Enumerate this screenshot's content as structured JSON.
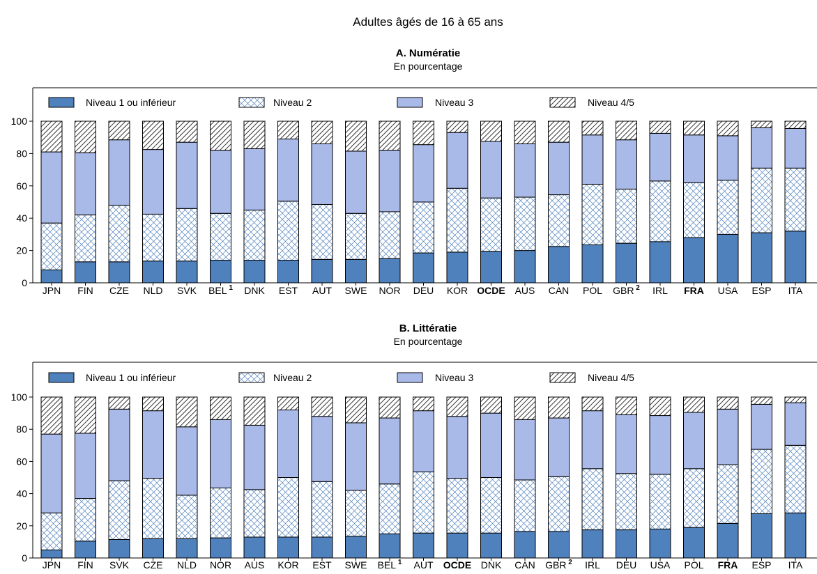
{
  "supertitle": "Adultes âgés de 16 à 65 ans",
  "legend": {
    "labels": [
      "Niveau 1 ou inférieur",
      "Niveau 2",
      "Niveau 3",
      "Niveau 4/5"
    ]
  },
  "colors": {
    "level1": "#4f81bd",
    "level2_fill": "#ffffff",
    "level2_hatch": "#4f81bd",
    "level3": "#a9b9e8",
    "level45_fill": "#ffffff",
    "level45_hatch": "#000000"
  },
  "chart_data": [
    {
      "type": "bar",
      "stacked": true,
      "title": "A. Numératie",
      "subtitle": "En pourcentage",
      "ylim": [
        0,
        100
      ],
      "yticks": [
        0,
        20,
        40,
        60,
        80,
        100
      ],
      "categories": [
        "JPN",
        "FIN",
        "CZE",
        "NLD",
        "SVK",
        "BEL",
        "DNK",
        "EST",
        "AUT",
        "SWE",
        "NOR",
        "DEU",
        "KOR",
        "OCDE",
        "AUS",
        "CAN",
        "POL",
        "GBR",
        "IRL",
        "FRA",
        "USA",
        "ESP",
        "ITA"
      ],
      "category_notes": [
        "",
        "",
        "",
        "",
        "",
        "1",
        "",
        "",
        "",
        "",
        "",
        "",
        "",
        "",
        "",
        "",
        "",
        "2",
        "",
        "",
        "",
        "",
        ""
      ],
      "bold_categories": [
        "OCDE",
        "FRA"
      ],
      "series": [
        {
          "name": "Niveau 1 ou inférieur",
          "values": [
            8,
            13,
            13,
            13.5,
            13.5,
            14,
            14,
            14,
            14.5,
            14.5,
            15,
            18.5,
            19,
            19.5,
            20,
            22.5,
            23.5,
            24.5,
            25.5,
            28,
            30,
            31,
            32
          ]
        },
        {
          "name": "Niveau 2",
          "values": [
            29,
            29,
            35,
            29,
            32.5,
            29,
            31,
            36.5,
            34,
            28.5,
            29,
            31.5,
            39.5,
            33,
            33,
            32,
            37.5,
            33.5,
            37.5,
            34,
            33.5,
            40,
            39
          ]
        },
        {
          "name": "Niveau 3",
          "values": [
            44,
            38.5,
            40.5,
            40,
            41,
            39,
            38,
            38.5,
            37.5,
            38.5,
            38,
            35.5,
            34.5,
            35,
            33,
            32.5,
            30.5,
            30.5,
            29.5,
            29.5,
            27.5,
            25,
            24.5
          ]
        },
        {
          "name": "Niveau 4/5",
          "values": [
            19,
            19.5,
            11.5,
            17.5,
            13,
            18,
            17,
            11,
            14,
            18.5,
            18,
            14.5,
            7,
            12.5,
            14,
            13,
            8.5,
            11.5,
            7.5,
            8.5,
            9,
            4,
            4.5
          ]
        }
      ]
    },
    {
      "type": "bar",
      "stacked": true,
      "title": "B. Littératie",
      "subtitle": "En pourcentage",
      "ylim": [
        0,
        100
      ],
      "yticks": [
        0,
        20,
        40,
        60,
        80,
        100
      ],
      "categories": [
        "JPN",
        "FIN",
        "SVK",
        "CZE",
        "NLD",
        "NOR",
        "AUS",
        "KOR",
        "EST",
        "SWE",
        "BEL",
        "AUT",
        "OCDE",
        "DNK",
        "CAN",
        "GBR",
        "IRL",
        "DEU",
        "USA",
        "POL",
        "FRA",
        "ESP",
        "ITA"
      ],
      "category_notes": [
        "",
        "",
        "",
        "",
        "",
        "",
        "",
        "",
        "",
        "",
        "1",
        "",
        "",
        "",
        "",
        "2",
        "",
        "",
        "",
        "",
        "",
        "",
        ""
      ],
      "bold_categories": [
        "OCDE",
        "FRA"
      ],
      "series": [
        {
          "name": "Niveau 1 ou inférieur",
          "values": [
            5,
            10.5,
            11.5,
            12,
            12,
            12.5,
            13,
            13,
            13,
            13.5,
            15,
            15.5,
            15.5,
            15.5,
            16.5,
            16.5,
            17.5,
            17.5,
            18,
            19,
            21.5,
            27.5,
            28
          ]
        },
        {
          "name": "Niveau 2",
          "values": [
            23,
            26.5,
            36.5,
            37.5,
            27,
            31,
            29.5,
            37,
            34.5,
            28.5,
            31,
            38,
            34,
            34.5,
            32,
            34,
            38,
            35,
            34,
            36.5,
            36.5,
            40,
            42
          ]
        },
        {
          "name": "Niveau 3",
          "values": [
            49,
            40.5,
            44.5,
            42,
            42.5,
            42.5,
            40,
            42,
            40.5,
            42,
            41,
            38,
            38.5,
            40,
            37.5,
            36.5,
            36,
            36.5,
            36.5,
            35,
            34.5,
            28,
            26.5
          ]
        },
        {
          "name": "Niveau 4/5",
          "values": [
            23,
            22.5,
            7.5,
            8.5,
            18.5,
            14,
            17.5,
            8,
            12,
            16,
            13,
            8.5,
            12,
            10,
            14,
            13,
            8.5,
            11,
            11.5,
            9.5,
            7.5,
            4.5,
            3.5
          ]
        }
      ]
    }
  ]
}
